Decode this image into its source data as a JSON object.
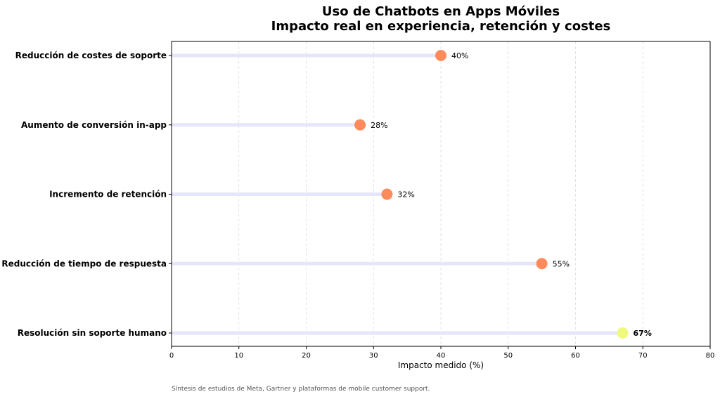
{
  "chart_data": {
    "type": "lollipop",
    "orientation": "horizontal",
    "title": "Uso de Chatbots en Apps Móviles",
    "subtitle": "Impacto real en experiencia, retención y costes",
    "xlabel": "Impacto medido (%)",
    "ylabel": "",
    "xlim": [
      0,
      80
    ],
    "xticks": [
      "0",
      "10",
      "20",
      "30",
      "40",
      "50",
      "60",
      "70",
      "80"
    ],
    "grid": "vertical dashed",
    "categories": [
      "Reducción de costes de soporte",
      "Aumento de conversión in-app",
      "Incremento de retención",
      "Reducción de tiempo de respuesta",
      "Resolución sin soporte humano"
    ],
    "values": [
      40,
      28,
      32,
      55,
      67
    ],
    "labels": [
      "40%",
      "28%",
      "32%",
      "55%",
      "67%"
    ],
    "highlight_index": 4,
    "footnote": "Síntesis de estudios de Meta, Gartner y plataformas de mobile customer support.",
    "colors": {
      "stem": "#e6e6fa",
      "dot": "#ff8a5b",
      "highlight_dot": "#eef97e",
      "axis": "#000000",
      "grid": "#dddddd",
      "footnote": "#555555"
    }
  }
}
